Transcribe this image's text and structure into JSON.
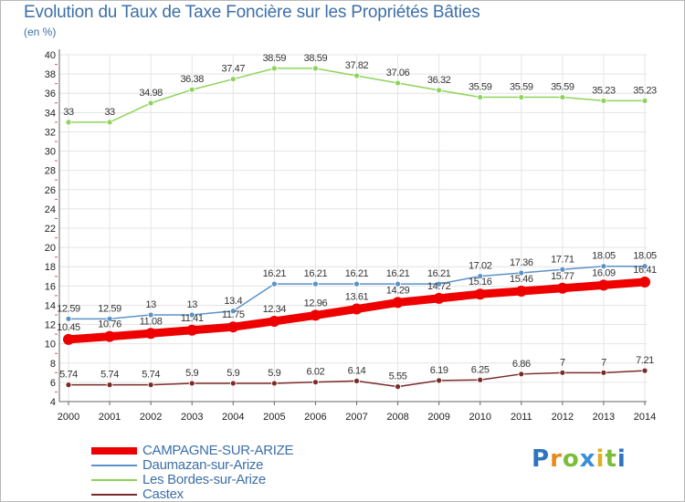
{
  "title": "Evolution du Taux de Taxe Foncière sur les Propriétés Bâties",
  "unit": "(en %)",
  "brand": {
    "letters": [
      "P",
      "r",
      "o",
      "x",
      "i",
      "t",
      "i"
    ],
    "colors": [
      "#2f74c0",
      "#e88a1a",
      "#7bbd3a",
      "#3a8fd8",
      "#e0b020",
      "#7bbd3a",
      "#2f74c0"
    ]
  },
  "chart_data": {
    "type": "line",
    "title": "Evolution du Taux de Taxe Foncière sur les Propriétés Bâties",
    "ylabel": "(en %)",
    "xlabel": "",
    "ylim": [
      4,
      40
    ],
    "yticks": [
      4,
      6,
      8,
      10,
      12,
      14,
      16,
      18,
      20,
      22,
      24,
      26,
      28,
      30,
      32,
      34,
      36,
      38,
      40
    ],
    "x": [
      2000,
      2001,
      2002,
      2003,
      2004,
      2005,
      2006,
      2007,
      2008,
      2009,
      2010,
      2011,
      2012,
      2013,
      2014
    ],
    "grid": true,
    "series": [
      {
        "name": "Les Bordes-sur-Arize",
        "color": "#8ed45a",
        "values": [
          33,
          33,
          34.98,
          36.38,
          37.47,
          38.59,
          38.59,
          37.82,
          37.06,
          36.32,
          35.59,
          35.59,
          35.59,
          35.23,
          35.23
        ],
        "labels": [
          "33",
          "33",
          "34.98",
          "36.38",
          "37.47",
          "38.59",
          "38.59",
          "37.82",
          "37.06",
          "36.32",
          "35.59",
          "35.59",
          "35.59",
          "35.23",
          "35.23"
        ]
      },
      {
        "name": "Daumazan-sur-Arize",
        "color": "#5b93c7",
        "values": [
          12.59,
          12.59,
          13,
          13,
          13.4,
          16.21,
          16.21,
          16.21,
          16.21,
          16.21,
          17.02,
          17.36,
          17.71,
          18.05,
          18.05
        ],
        "labels": [
          "12.59",
          "12.59",
          "13",
          "13",
          "13.4",
          "16.21",
          "16.21",
          "16.21",
          "16.21",
          "16.21",
          "17.02",
          "17.36",
          "17.71",
          "18.05",
          "18.05"
        ]
      },
      {
        "name": "CAMPAGNE-SUR-ARIZE",
        "color": "#ee0000",
        "values": [
          10.45,
          10.76,
          11.08,
          11.41,
          11.75,
          12.34,
          12.96,
          13.61,
          14.29,
          14.72,
          15.16,
          15.46,
          15.77,
          16.09,
          16.41
        ],
        "labels": [
          "10.45",
          "10.76",
          "11.08",
          "11.41",
          "11.75",
          "12.34",
          "12.96",
          "13.61",
          "14.29",
          "14.72",
          "15.16",
          "15.46",
          "15.77",
          "16.09",
          "16.41"
        ]
      },
      {
        "name": "Castex",
        "color": "#7a2a2a",
        "values": [
          5.74,
          5.74,
          5.74,
          5.9,
          5.9,
          5.9,
          6.02,
          6.14,
          5.55,
          6.19,
          6.25,
          6.86,
          7,
          7,
          7.21
        ],
        "labels": [
          "5.74",
          "5.74",
          "5.74",
          "5.9",
          "5.9",
          "5.9",
          "6.02",
          "6.14",
          "5.55",
          "6.19",
          "6.25",
          "6.86",
          "7",
          "7",
          "7.21"
        ]
      }
    ],
    "legend": [
      "CAMPAGNE-SUR-ARIZE",
      "Daumazan-sur-Arize",
      "Les Bordes-sur-Arize",
      "Castex"
    ]
  }
}
